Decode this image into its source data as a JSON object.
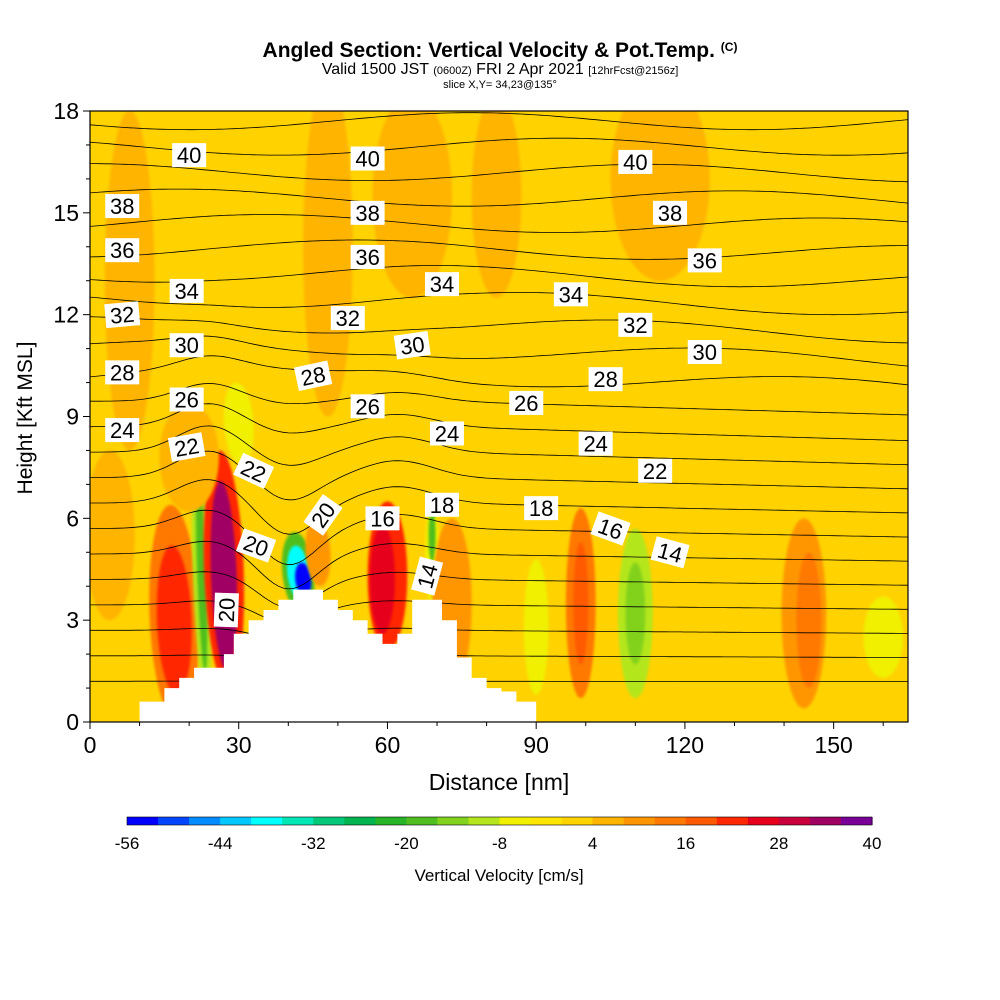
{
  "header": {
    "title": "Angled Section: Vertical Velocity & Pot.Temp.",
    "copyright": "(C)",
    "valid_prefix": "Valid 1500 JST",
    "valid_utc": "(0600Z)",
    "valid_date": "FRI 2 Apr 2021",
    "forecast": "[12hrFcst@2156z]",
    "slice": "slice X,Y= 34,23@135°"
  },
  "chart_data": {
    "type": "heatmap",
    "xlabel": "Distance [nm]",
    "ylabel": "Height [Kft MSL]",
    "xlim": [
      0,
      165
    ],
    "ylim": [
      0,
      18
    ],
    "xticks": [
      0,
      30,
      60,
      90,
      120,
      150
    ],
    "yticks": [
      0,
      3,
      6,
      9,
      12,
      15,
      18
    ],
    "colorbar": {
      "label": "Vertical Velocity [cm/s]",
      "tick_labels": [
        "-56",
        "-44",
        "-32",
        "-20",
        "-8",
        "4",
        "16",
        "28",
        "40"
      ],
      "levels": [
        -56,
        -52,
        -48,
        -44,
        -40,
        -36,
        -32,
        -28,
        -24,
        -20,
        -16,
        -12,
        -8,
        -4,
        0,
        4,
        8,
        12,
        16,
        20,
        24,
        28,
        32,
        36,
        40
      ],
      "colors": [
        "#0000ff",
        "#0046ff",
        "#008cff",
        "#00c8ff",
        "#00ffff",
        "#00e6b4",
        "#00c878",
        "#00b450",
        "#28b428",
        "#50be1e",
        "#82d21e",
        "#b4e61e",
        "#f0f000",
        "#ffe600",
        "#ffd200",
        "#ffb400",
        "#ff9600",
        "#ff7800",
        "#ff5a00",
        "#ff2800",
        "#e6001e",
        "#c8003c",
        "#a00064",
        "#780096"
      ]
    },
    "background_value": 1,
    "velocity_cells": [
      {
        "x": 17,
        "z": 3.2,
        "w": -2,
        "dx": 5,
        "dz": 3.2,
        "value": 14
      },
      {
        "x": 17,
        "z": 3.0,
        "w": -2,
        "dx": 3.5,
        "dz": 2.2,
        "value": 22
      },
      {
        "x": 22.5,
        "z": 4.5,
        "w": -2,
        "dx": 1.8,
        "dz": 3.8,
        "value": -10
      },
      {
        "x": 22.5,
        "z": 4.5,
        "w": -2,
        "dx": 0.9,
        "dz": 3.0,
        "value": -18
      },
      {
        "x": 27,
        "z": 4.5,
        "w": -2,
        "dx": 4,
        "dz": 3.5,
        "value": 22
      },
      {
        "x": 27,
        "z": 4.3,
        "w": -2,
        "dx": 2.6,
        "dz": 2.8,
        "value": 34
      },
      {
        "x": 30,
        "z": 8.8,
        "w": -4,
        "dx": 3,
        "dz": 1.2,
        "value": -8
      },
      {
        "x": 42,
        "z": 4.4,
        "w": -6,
        "dx": 3.2,
        "dz": 1.2,
        "value": -20
      },
      {
        "x": 42,
        "z": 4.4,
        "w": -6,
        "dx": 2.2,
        "dz": 0.8,
        "value": -40
      },
      {
        "x": 43,
        "z": 4.2,
        "w": -6,
        "dx": 1.6,
        "dz": 0.5,
        "value": -56
      },
      {
        "x": 46,
        "z": 5.0,
        "w": -4,
        "dx": 2.5,
        "dz": 1.0,
        "value": 8
      },
      {
        "x": 60,
        "z": 4.3,
        "w": 0,
        "dx": 4,
        "dz": 2.2,
        "value": 20
      },
      {
        "x": 59,
        "z": 4.2,
        "w": 0,
        "dx": 2.5,
        "dz": 1.6,
        "value": 26
      },
      {
        "x": 69,
        "z": 5.0,
        "w": 0,
        "dx": 1.4,
        "dz": 1.5,
        "value": -8
      },
      {
        "x": 69,
        "z": 5.5,
        "w": 0,
        "dx": 0.7,
        "dz": 0.8,
        "value": -20
      },
      {
        "x": 73,
        "z": 3.5,
        "w": 0,
        "dx": 4,
        "dz": 2.5,
        "value": 10
      },
      {
        "x": 90,
        "z": 2.8,
        "w": 0,
        "dx": 2.5,
        "dz": 2.0,
        "value": -6
      },
      {
        "x": 99,
        "z": 3.5,
        "w": 0,
        "dx": 3,
        "dz": 2.8,
        "value": 14
      },
      {
        "x": 99,
        "z": 3.5,
        "w": 0,
        "dx": 1.5,
        "dz": 1.8,
        "value": 18
      },
      {
        "x": 110,
        "z": 3.2,
        "w": 0,
        "dx": 3.5,
        "dz": 2.5,
        "value": -10
      },
      {
        "x": 110,
        "z": 3.2,
        "w": 0,
        "dx": 2.0,
        "dz": 1.5,
        "value": -16
      },
      {
        "x": 144,
        "z": 3.2,
        "w": 0,
        "dx": 4.5,
        "dz": 2.8,
        "value": 8
      },
      {
        "x": 145,
        "z": 3.0,
        "w": 0,
        "dx": 2.5,
        "dz": 2.0,
        "value": 12
      },
      {
        "x": 160,
        "z": 2.5,
        "w": 0,
        "dx": 4,
        "dz": 1.2,
        "value": -6
      },
      {
        "x": 4,
        "z": 5.5,
        "w": 0,
        "dx": 5,
        "dz": 2.5,
        "value": 6
      },
      {
        "x": 8,
        "z": 13,
        "w": 0,
        "dx": 5,
        "dz": 5,
        "value": 6
      },
      {
        "x": 48,
        "z": 14,
        "w": 0,
        "dx": 5,
        "dz": 5,
        "value": 5
      },
      {
        "x": 65,
        "z": 15.5,
        "w": 0,
        "dx": 8,
        "dz": 3,
        "value": 5
      },
      {
        "x": 82,
        "z": 15.5,
        "w": 0,
        "dx": 5,
        "dz": 3,
        "value": 5
      },
      {
        "x": 115,
        "z": 16,
        "w": 0,
        "dx": 10,
        "dz": 3,
        "value": 4
      },
      {
        "x": 20,
        "z": 7.8,
        "w": 0,
        "dx": 6,
        "dz": 1.6,
        "value": 6
      }
    ],
    "terrain": {
      "x": [
        10,
        10,
        15,
        15,
        18,
        18,
        21,
        21,
        27,
        27,
        29,
        29,
        32,
        32,
        35,
        35,
        38,
        38,
        41,
        41,
        47,
        47,
        50,
        50,
        53,
        53,
        56,
        56,
        59,
        59,
        62,
        62,
        65,
        65,
        71,
        71,
        74,
        74,
        77,
        77,
        80,
        80,
        83,
        83,
        86,
        86,
        90,
        90
      ],
      "z": [
        0,
        0.6,
        0.6,
        1.0,
        1.0,
        1.3,
        1.3,
        1.6,
        1.6,
        2.0,
        2.0,
        2.6,
        2.6,
        3.0,
        3.0,
        3.3,
        3.3,
        3.6,
        3.6,
        3.9,
        3.9,
        3.6,
        3.6,
        3.3,
        3.3,
        3.0,
        3.0,
        2.6,
        2.6,
        2.3,
        2.3,
        2.6,
        2.6,
        3.6,
        3.6,
        3.0,
        3.0,
        1.9,
        1.9,
        1.3,
        1.3,
        1.0,
        1.0,
        0.9,
        0.9,
        0.6,
        0.6,
        0
      ]
    },
    "isentrope_levels": [
      13,
      14,
      15,
      16,
      17,
      18,
      19,
      20,
      21,
      22,
      23,
      24,
      25,
      26,
      27,
      28,
      29,
      30,
      31,
      32,
      33,
      34,
      35,
      36,
      37,
      38,
      39,
      40,
      41
    ],
    "contour_labels": [
      {
        "text": "40",
        "x": 20,
        "z": 16.7,
        "angle": 0
      },
      {
        "text": "40",
        "x": 56,
        "z": 16.6,
        "angle": 0
      },
      {
        "text": "40",
        "x": 110,
        "z": 16.5,
        "angle": 0
      },
      {
        "text": "38",
        "x": 6.5,
        "z": 15.2,
        "angle": 0
      },
      {
        "text": "38",
        "x": 56,
        "z": 15.0,
        "angle": 0
      },
      {
        "text": "38",
        "x": 117,
        "z": 15.0,
        "angle": 0
      },
      {
        "text": "36",
        "x": 6.5,
        "z": 13.9,
        "angle": 0
      },
      {
        "text": "36",
        "x": 56,
        "z": 13.7,
        "angle": 0
      },
      {
        "text": "36",
        "x": 124,
        "z": 13.6,
        "angle": 0
      },
      {
        "text": "34",
        "x": 19.5,
        "z": 12.7,
        "angle": 0
      },
      {
        "text": "34",
        "x": 71,
        "z": 12.9,
        "angle": 0
      },
      {
        "text": "34",
        "x": 97,
        "z": 12.6,
        "angle": 0
      },
      {
        "text": "32",
        "x": 6.5,
        "z": 12.0,
        "angle": -5
      },
      {
        "text": "32",
        "x": 52,
        "z": 11.9,
        "angle": 0
      },
      {
        "text": "32",
        "x": 110,
        "z": 11.7,
        "angle": 0
      },
      {
        "text": "30",
        "x": 19.5,
        "z": 11.1,
        "angle": 0
      },
      {
        "text": "30",
        "x": 65,
        "z": 11.1,
        "angle": -8
      },
      {
        "text": "30",
        "x": 124,
        "z": 10.9,
        "angle": 0
      },
      {
        "text": "28",
        "x": 6.5,
        "z": 10.3,
        "angle": 0
      },
      {
        "text": "28",
        "x": 45,
        "z": 10.2,
        "angle": -12
      },
      {
        "text": "28",
        "x": 104,
        "z": 10.1,
        "angle": 0
      },
      {
        "text": "26",
        "x": 19.5,
        "z": 9.5,
        "angle": 0
      },
      {
        "text": "26",
        "x": 56,
        "z": 9.3,
        "angle": 0
      },
      {
        "text": "26",
        "x": 88,
        "z": 9.4,
        "angle": 0
      },
      {
        "text": "24",
        "x": 6.5,
        "z": 8.6,
        "angle": 0
      },
      {
        "text": "24",
        "x": 72,
        "z": 8.5,
        "angle": 0
      },
      {
        "text": "24",
        "x": 102,
        "z": 8.2,
        "angle": 0
      },
      {
        "text": "22",
        "x": 19.5,
        "z": 8.1,
        "angle": -10
      },
      {
        "text": "22",
        "x": 33,
        "z": 7.4,
        "angle": 25
      },
      {
        "text": "22",
        "x": 114,
        "z": 7.4,
        "angle": 0
      },
      {
        "text": "20",
        "x": 47,
        "z": 6.1,
        "angle": -55
      },
      {
        "text": "20",
        "x": 33.5,
        "z": 5.2,
        "angle": 20
      },
      {
        "text": "20",
        "x": 27.5,
        "z": 3.3,
        "angle": -88
      },
      {
        "text": "18",
        "x": 71,
        "z": 6.4,
        "angle": 0
      },
      {
        "text": "18",
        "x": 91,
        "z": 6.3,
        "angle": 0
      },
      {
        "text": "16",
        "x": 59,
        "z": 6.0,
        "angle": 0
      },
      {
        "text": "16",
        "x": 105,
        "z": 5.7,
        "angle": 20
      },
      {
        "text": "14",
        "x": 68,
        "z": 4.3,
        "angle": -75
      },
      {
        "text": "14",
        "x": 117,
        "z": 5.0,
        "angle": 15
      }
    ]
  }
}
